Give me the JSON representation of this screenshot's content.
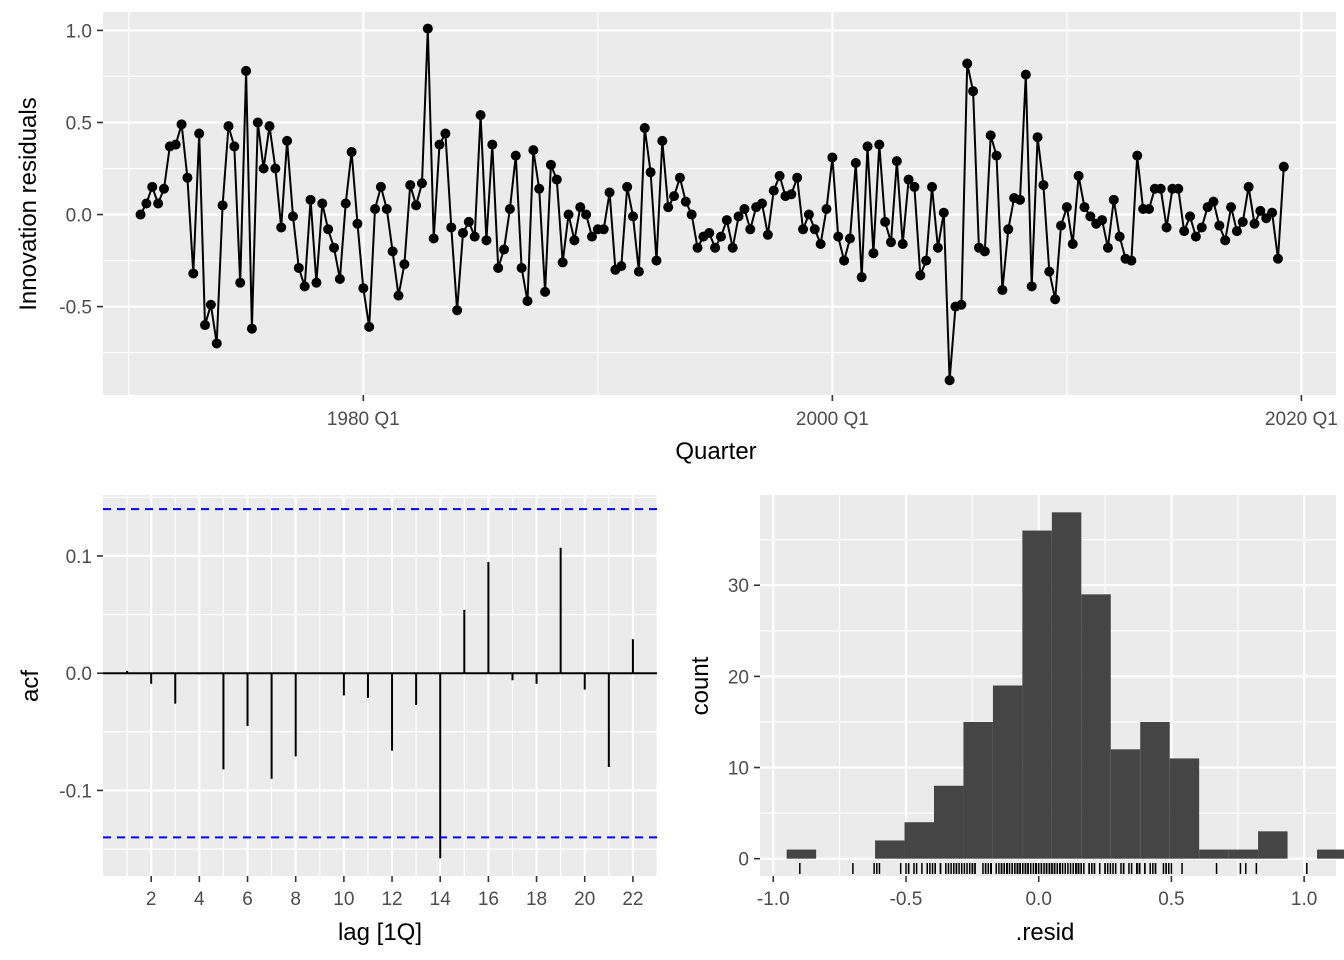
{
  "chart_data": [
    {
      "type": "line",
      "xlabel": "Quarter",
      "ylabel": "Innovation residuals",
      "x_start": "1970 Q3",
      "x_ticks": [
        "1980 Q1",
        "2000 Q1",
        "2020 Q1"
      ],
      "y_ticks": [
        "-0.5",
        "0.0",
        "0.5",
        "1.0"
      ],
      "ylim": [
        -0.98,
        1.1
      ],
      "markers": true,
      "series": [
        {
          "values": [
            0.0,
            0.06,
            0.15,
            0.06,
            0.14,
            0.37,
            0.38,
            0.49,
            0.2,
            -0.32,
            0.44,
            -0.6,
            -0.49,
            -0.7,
            0.05,
            0.48,
            0.37,
            -0.37,
            0.78,
            -0.62,
            0.5,
            0.25,
            0.48,
            0.25,
            -0.07,
            0.4,
            -0.01,
            -0.29,
            -0.39,
            0.08,
            -0.37,
            0.06,
            -0.08,
            -0.18,
            -0.35,
            0.06,
            0.34,
            -0.05,
            -0.4,
            -0.61,
            0.03,
            0.15,
            0.03,
            -0.2,
            -0.44,
            -0.27,
            0.16,
            0.05,
            0.17,
            1.01,
            -0.13,
            0.38,
            0.44,
            -0.07,
            -0.52,
            -0.1,
            -0.04,
            -0.12,
            0.54,
            -0.14,
            0.38,
            -0.29,
            -0.19,
            0.03,
            0.32,
            -0.29,
            -0.47,
            0.35,
            0.14,
            -0.42,
            0.27,
            0.19,
            -0.26,
            0.0,
            -0.14,
            0.04,
            0.0,
            -0.12,
            -0.08,
            -0.08,
            0.12,
            -0.3,
            -0.28,
            0.15,
            -0.01,
            -0.31,
            0.47,
            0.23,
            -0.25,
            0.4,
            0.04,
            0.1,
            0.2,
            0.07,
            0.0,
            -0.18,
            -0.12,
            -0.1,
            -0.18,
            -0.12,
            -0.03,
            -0.18,
            -0.01,
            0.03,
            -0.08,
            0.04,
            0.06,
            -0.11,
            0.13,
            0.21,
            0.1,
            0.11,
            0.2,
            -0.08,
            0.0,
            -0.08,
            -0.16,
            0.03,
            0.31,
            -0.12,
            -0.25,
            -0.13,
            0.28,
            -0.34,
            0.37,
            -0.21,
            0.38,
            -0.04,
            -0.15,
            0.29,
            -0.16,
            0.19,
            0.15,
            -0.33,
            -0.25,
            0.15,
            -0.18,
            0.01,
            -0.9,
            -0.5,
            -0.49,
            0.82,
            0.67,
            -0.18,
            -0.2,
            0.43,
            0.32,
            -0.41,
            -0.08,
            0.09,
            0.08,
            0.76,
            -0.39,
            0.42,
            0.16,
            -0.31,
            -0.46,
            -0.06,
            0.04,
            -0.16,
            0.21,
            0.04,
            -0.01,
            -0.05,
            -0.03,
            -0.18,
            0.08,
            -0.12,
            -0.24,
            -0.25,
            0.32,
            0.03,
            0.03,
            0.14,
            0.14,
            -0.07,
            0.14,
            0.14,
            -0.09,
            -0.01,
            -0.12,
            -0.07,
            0.04,
            0.07,
            -0.06,
            -0.14,
            0.04,
            -0.09,
            -0.04,
            0.15,
            -0.05,
            0.02,
            -0.02,
            0.01,
            -0.24,
            0.26
          ]
        }
      ]
    },
    {
      "type": "bar",
      "xlabel": "lag [1Q]",
      "ylabel": "acf",
      "lags": [
        1,
        2,
        3,
        4,
        5,
        6,
        7,
        8,
        9,
        10,
        11,
        12,
        13,
        14,
        15,
        16,
        17,
        18,
        19,
        20,
        21,
        22
      ],
      "values": [
        0.002,
        -0.009,
        -0.026,
        -0.001,
        -0.082,
        -0.045,
        -0.09,
        -0.071,
        0.0,
        -0.019,
        -0.021,
        -0.066,
        -0.027,
        -0.158,
        0.054,
        0.095,
        -0.006,
        -0.009,
        0.107,
        -0.014,
        -0.08,
        0.029
      ],
      "confidence_bound": 0.14,
      "x_ticks": [
        "2",
        "4",
        "6",
        "8",
        "10",
        "12",
        "14",
        "16",
        "18",
        "20",
        "22"
      ],
      "y_ticks": [
        "-0.1",
        "0.0",
        "0.1"
      ],
      "xlim": [
        0,
        23
      ],
      "ylim": [
        -0.173,
        0.152
      ],
      "bound_color": "#0000ff"
    },
    {
      "type": "bar",
      "subtype": "histogram",
      "xlabel": ".resid",
      "ylabel": "count",
      "bin_width": 0.111,
      "bin_start": -0.9495,
      "counts": [
        1,
        0,
        0,
        2,
        4,
        8,
        15,
        19,
        36,
        38,
        29,
        12,
        15,
        11,
        1,
        1,
        3,
        0,
        1
      ],
      "x_ticks": [
        "-1.0",
        "-0.5",
        "0.0",
        "0.5",
        "1.0"
      ],
      "y_ticks": [
        "0",
        "10",
        "20",
        "30"
      ],
      "xlim": [
        -1.05,
        1.12
      ],
      "ylim": [
        -1.9,
        39.9
      ],
      "bar_color": "#454545",
      "rug": true
    }
  ]
}
